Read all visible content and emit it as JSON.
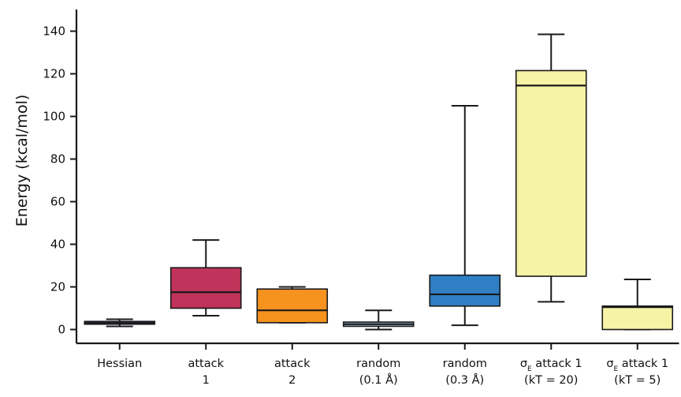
{
  "chart_data": {
    "type": "box",
    "title": "",
    "xlabel": "",
    "ylabel": "Energy (kcal/mol)",
    "ylim": [
      -6,
      150
    ],
    "yticks": [
      0,
      20,
      40,
      60,
      80,
      100,
      120,
      140
    ],
    "grid": false,
    "legend": "none",
    "categories": [
      {
        "lines": [
          "Hessian"
        ],
        "subscript_prefix": false
      },
      {
        "lines": [
          "attack",
          "1"
        ],
        "subscript_prefix": false
      },
      {
        "lines": [
          "attack",
          "2"
        ],
        "subscript_prefix": false
      },
      {
        "lines": [
          "random",
          "(0.1 Å)"
        ],
        "subscript_prefix": false
      },
      {
        "lines": [
          "random",
          "(0.3 Å)"
        ],
        "subscript_prefix": false
      },
      {
        "lines": [
          "attack 1",
          "(kT = 20)"
        ],
        "subscript_prefix": true
      },
      {
        "lines": [
          "attack 1",
          "(kT = 5)"
        ],
        "subscript_prefix": true
      }
    ],
    "sigma_symbol": "σ",
    "sigma_subscript": "E",
    "boxes": [
      {
        "whisker_low": 1.5,
        "q1": 2.5,
        "median": 3.0,
        "q3": 3.8,
        "whisker_high": 4.8,
        "color": "#1f4e9a"
      },
      {
        "whisker_low": 6.5,
        "q1": 10.0,
        "median": 17.5,
        "q3": 29.0,
        "whisker_high": 42.0,
        "color": "#c0335a"
      },
      {
        "whisker_low": 3.2,
        "q1": 3.2,
        "median": 9.0,
        "q3": 19.0,
        "whisker_high": 20.0,
        "color": "#f6921e"
      },
      {
        "whisker_low": 0.0,
        "q1": 1.5,
        "median": 2.5,
        "q3": 3.5,
        "whisker_high": 9.0,
        "color": "#a8c8e6"
      },
      {
        "whisker_low": 2.0,
        "q1": 11.0,
        "median": 16.5,
        "q3": 25.5,
        "whisker_high": 105.0,
        "color": "#2f7fc4"
      },
      {
        "whisker_low": 13.0,
        "q1": 25.0,
        "median": 114.5,
        "q3": 121.5,
        "whisker_high": 138.5,
        "color": "#f7f3a6"
      },
      {
        "whisker_low": 0.0,
        "q1": 0.0,
        "median": 10.5,
        "q3": 11.0,
        "whisker_high": 23.5,
        "color": "#f7f3a6"
      }
    ]
  }
}
